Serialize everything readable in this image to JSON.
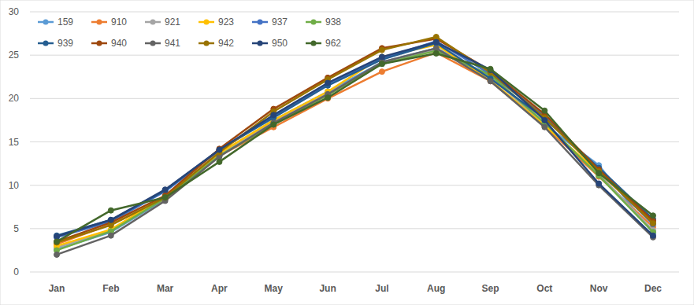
{
  "chart_data": {
    "type": "line",
    "categories": [
      "Jan",
      "Feb",
      "Mar",
      "Apr",
      "May",
      "Jun",
      "Jul",
      "Aug",
      "Sep",
      "Oct",
      "Nov",
      "Dec"
    ],
    "ylim": [
      0,
      30
    ],
    "yticks": [
      0,
      5,
      10,
      15,
      20,
      25,
      30
    ],
    "grid": true,
    "legend": "top-left",
    "marker": "circle",
    "series": [
      {
        "name": "159",
        "color": "#5B9BD5",
        "values": [
          2.6,
          4.6,
          8.4,
          13.5,
          17.5,
          20.8,
          24.2,
          25.8,
          22.6,
          17.0,
          12.3,
          4.5
        ]
      },
      {
        "name": "910",
        "color": "#ED7D31",
        "values": [
          3.2,
          5.5,
          8.4,
          13.4,
          16.7,
          20.0,
          23.1,
          25.3,
          22.0,
          16.8,
          11.0,
          5.2
        ]
      },
      {
        "name": "921",
        "color": "#A5A5A5",
        "values": [
          2.8,
          4.8,
          8.6,
          13.6,
          17.3,
          20.6,
          24.0,
          25.6,
          22.5,
          17.1,
          11.3,
          4.8
        ]
      },
      {
        "name": "923",
        "color": "#FFC000",
        "values": [
          3.0,
          4.9,
          8.7,
          13.7,
          17.5,
          20.8,
          24.8,
          26.2,
          22.1,
          16.9,
          11.5,
          5.8
        ]
      },
      {
        "name": "937",
        "color": "#4472C4",
        "values": [
          4.0,
          5.8,
          9.3,
          14.0,
          18.0,
          21.7,
          24.6,
          26.6,
          22.8,
          18.0,
          11.7,
          5.5
        ]
      },
      {
        "name": "938",
        "color": "#70AD47",
        "values": [
          2.5,
          4.7,
          8.5,
          13.4,
          17.0,
          20.4,
          24.0,
          25.5,
          22.7,
          17.2,
          11.1,
          4.6
        ]
      },
      {
        "name": "939",
        "color": "#255E91",
        "values": [
          4.2,
          6.0,
          9.4,
          14.1,
          17.8,
          21.5,
          24.5,
          26.4,
          22.3,
          17.7,
          12.0,
          6.1
        ]
      },
      {
        "name": "940",
        "color": "#9E480E",
        "values": [
          3.5,
          5.7,
          8.8,
          14.2,
          18.8,
          22.4,
          25.8,
          26.9,
          23.2,
          18.2,
          11.8,
          5.9
        ]
      },
      {
        "name": "941",
        "color": "#636363",
        "values": [
          2.0,
          4.2,
          8.2,
          13.3,
          17.2,
          20.5,
          24.2,
          25.8,
          22.0,
          16.7,
          10.0,
          4.0
        ]
      },
      {
        "name": "942",
        "color": "#997300",
        "values": [
          3.4,
          5.4,
          8.6,
          13.8,
          18.5,
          22.2,
          25.6,
          27.1,
          23.0,
          17.8,
          11.6,
          5.6
        ]
      },
      {
        "name": "950",
        "color": "#264478",
        "values": [
          4.1,
          6.0,
          9.5,
          14.1,
          18.1,
          21.8,
          24.8,
          26.5,
          23.3,
          17.5,
          10.2,
          4.2
        ]
      },
      {
        "name": "962",
        "color": "#43682B",
        "values": [
          3.5,
          7.1,
          8.6,
          12.7,
          17.0,
          20.1,
          24.0,
          25.2,
          23.4,
          18.6,
          11.4,
          6.5
        ]
      }
    ]
  }
}
